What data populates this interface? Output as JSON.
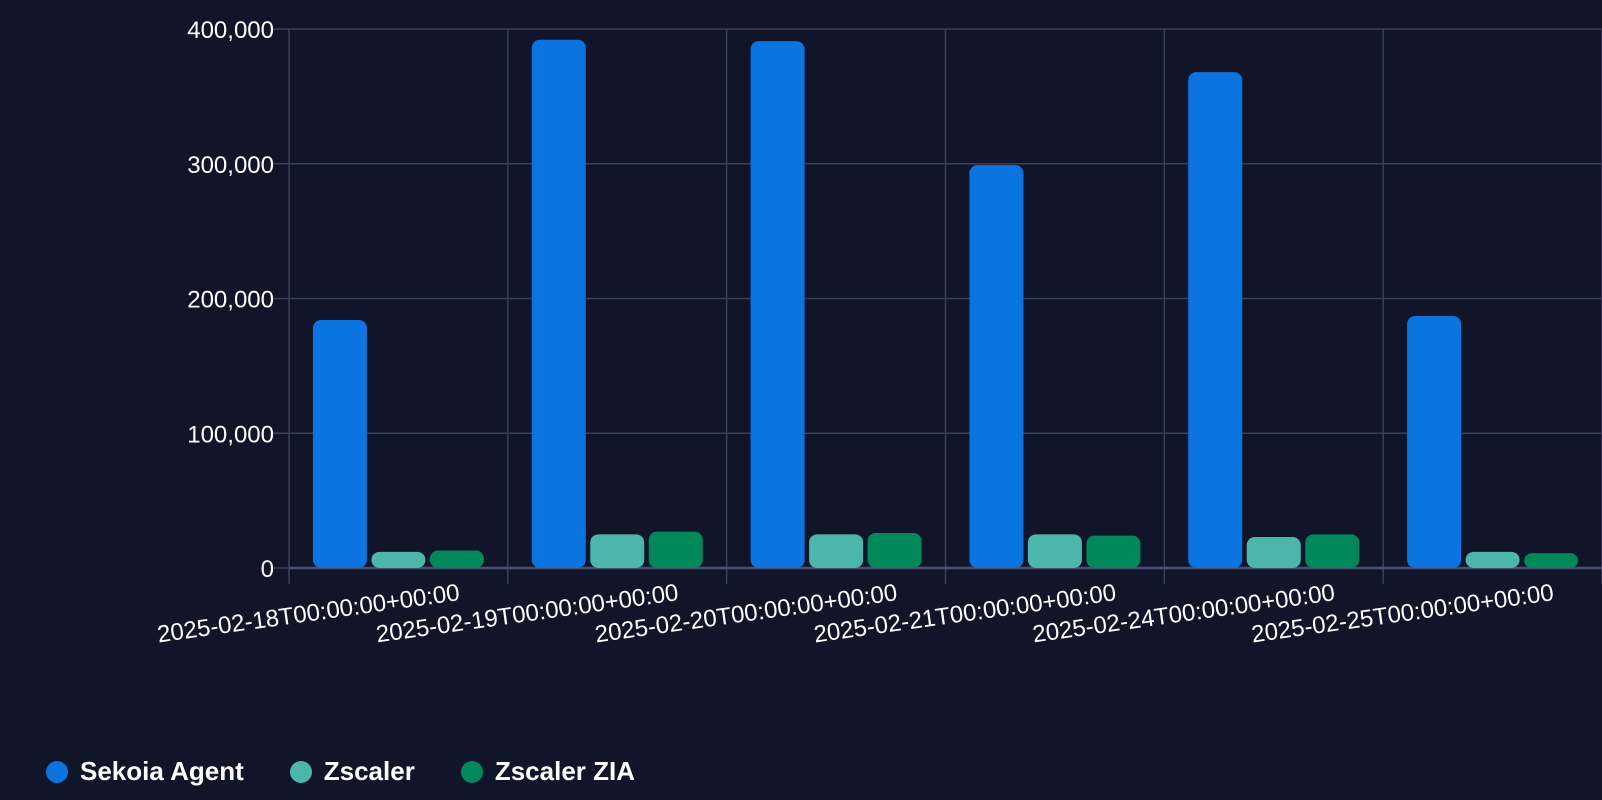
{
  "chart_data": {
    "type": "bar",
    "categories": [
      "2025-02-18T00:00:00+00:00",
      "2025-02-19T00:00:00+00:00",
      "2025-02-20T00:00:00+00:00",
      "2025-02-21T00:00:00+00:00",
      "2025-02-24T00:00:00+00:00",
      "2025-02-25T00:00:00+00:00"
    ],
    "series": [
      {
        "name": "Sekoia Agent",
        "color": "#0b74e0",
        "values": [
          184000,
          392000,
          391000,
          299000,
          368000,
          187000
        ]
      },
      {
        "name": "Zscaler",
        "color": "#4db6ac",
        "values": [
          12000,
          25000,
          25000,
          25000,
          23000,
          12000
        ]
      },
      {
        "name": "Zscaler ZIA",
        "color": "#00875a",
        "values": [
          13000,
          27000,
          26000,
          24000,
          25000,
          11000
        ]
      }
    ],
    "y_ticks": [
      "0",
      "100,000",
      "200,000",
      "300,000",
      "400,000"
    ],
    "y_tick_values": [
      0,
      100000,
      200000,
      300000,
      400000
    ],
    "ylim": [
      0,
      400000
    ],
    "grid": true,
    "legend_position": "bottom-left",
    "colors": {
      "background": "#10152a",
      "grid": "#3a3f5c",
      "axis": "#4a5070",
      "text": "#ffffff"
    }
  }
}
